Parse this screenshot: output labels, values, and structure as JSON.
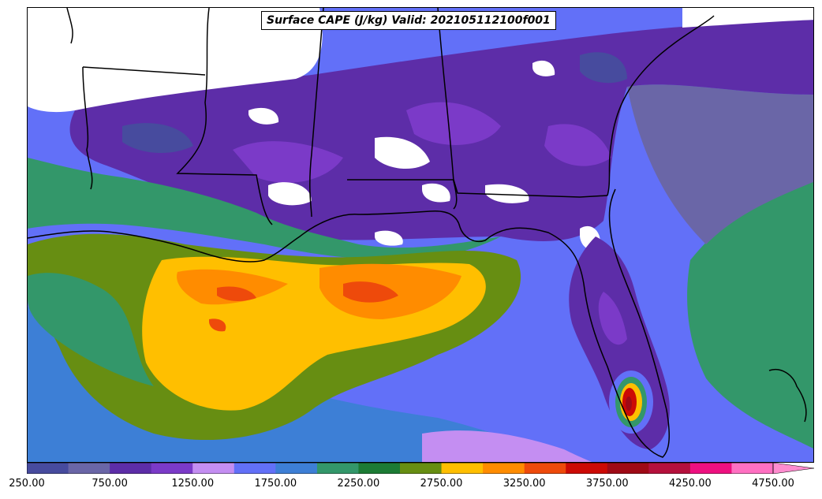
{
  "title": "Surface CAPE (J/kg) Valid: 202105112100f001",
  "colorbar": {
    "colors": [
      "#474b9e",
      "#6a66a7",
      "#5d2da8",
      "#7b3ac8",
      "#c48ef2",
      "#6270f8",
      "#3d7fd6",
      "#33976a",
      "#1c7b34",
      "#678e12",
      "#ffbf00",
      "#ff8c00",
      "#ee4a0b",
      "#cc0a05",
      "#9f0a16",
      "#b5103c",
      "#ee1080",
      "#ff70c2"
    ],
    "extend_color": "#ff8ccf",
    "ticks": [
      "250.00",
      "750.00",
      "1250.00",
      "1750.00",
      "2250.00",
      "2750.00",
      "3250.00",
      "3750.00",
      "4250.00",
      "4750.00"
    ]
  },
  "map": {
    "ocean_color": "#3d7fd6",
    "land_colors": [
      "#5d2da8",
      "#474b9e",
      "#6a66a7",
      "#7b3ac8"
    ],
    "nodata_color": "#ffffff",
    "gulf_colors": [
      "#33976a",
      "#678e12",
      "#ffbf00",
      "#ff8c00",
      "#ee4a0b"
    ],
    "storm_colors": [
      "#6270f8",
      "#33976a",
      "#ffbf00",
      "#cc0a05",
      "#9f0a16"
    ],
    "border_color": "#000000"
  }
}
